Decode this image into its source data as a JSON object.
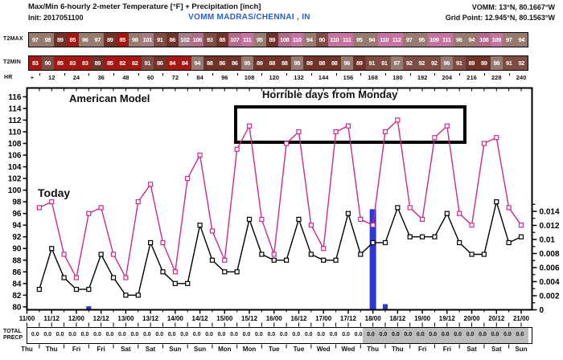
{
  "header": {
    "title": "Max/Min 6-hourly 2-meter Temperature [°F] + Precipitation [inch]",
    "init": "Init: 2017051100",
    "station": "VOMM MADRAS/CHENNAI , IN",
    "station_coords": "VOMM: 13°N, 80.1667°W",
    "grid_point": "Grid Point: 12.945°N, 80.1563°W"
  },
  "rows": {
    "t2max_label": "T2MAX",
    "t2min_label": "T2MIN",
    "hr_label": "HR",
    "hr_plus": "+",
    "hr_ticks": [
      "12",
      "24",
      "36",
      "48",
      "60",
      "72",
      "84",
      "96",
      "108",
      "120",
      "132",
      "144",
      "156",
      "168",
      "180",
      "192",
      "204",
      "216",
      "228",
      "240"
    ]
  },
  "palette": [
    {
      "max": 85,
      "color": "#A31812"
    },
    {
      "max": 89,
      "color": "#6F332A"
    },
    {
      "max": 93,
      "color": "#7F4C44"
    },
    {
      "max": 98,
      "color": "#977B71"
    },
    {
      "max": 103,
      "color": "#A47E86"
    },
    {
      "max": 108,
      "color": "#B36A8B"
    },
    {
      "max": 999,
      "color": "#C573A0"
    }
  ],
  "chart_data": {
    "type": "line",
    "title": "Max/Min 6-hourly 2-meter Temperature [°F] + Precipitation [inch]",
    "x_hours_start": 6,
    "x_hours_step": 6,
    "x_tick_labels": [
      "11/00",
      "11/12",
      "12/00",
      "12/12",
      "13/00",
      "13/12",
      "14/00",
      "14/12",
      "15/00",
      "15/12",
      "16/00",
      "16/12",
      "17/00",
      "17/12",
      "18/00",
      "18/12",
      "19/00",
      "19/12",
      "20/00",
      "20/12",
      "21/00"
    ],
    "temp_axis": {
      "min": 80,
      "max": 116,
      "tick_step": 2
    },
    "precip_axis_labels": [
      {
        "v": 0.014,
        "label": "0.014"
      },
      {
        "v": 0.012,
        "label": "0.012"
      },
      {
        "v": 0.01,
        "label": "0.01"
      },
      {
        "v": 0.008,
        "label": "0.008"
      },
      {
        "v": 0.006,
        "label": "0.006"
      },
      {
        "v": 0.004,
        "label": "0.004"
      },
      {
        "v": 0.002,
        "label": "0.002"
      },
      {
        "v": 0,
        "label": "0"
      }
    ],
    "series": [
      {
        "name": "T2MAX",
        "color": "#C92A8D",
        "values": [
          97,
          98,
          89,
          85,
          96,
          97,
          89,
          85,
          98,
          101,
          91,
          86,
          102,
          106,
          93,
          88,
          107,
          111,
          95,
          89,
          108,
          110,
          94,
          90,
          110,
          111,
          95,
          94,
          110,
          112,
          97,
          95,
          109,
          111,
          96,
          94,
          108,
          109,
          97,
          94
        ]
      },
      {
        "name": "T2MIN",
        "color": "#000000",
        "values": [
          83,
          90,
          85,
          83,
          83,
          89,
          85,
          82,
          82,
          91,
          86,
          84,
          84,
          94,
          88,
          86,
          86,
          95,
          89,
          88,
          88,
          95,
          89,
          88,
          88,
          96,
          89,
          91,
          91,
          97,
          92,
          92,
          92,
          96,
          91,
          89,
          89,
          98,
          91,
          92
        ]
      }
    ],
    "precip_bars": [
      {
        "hour": 30,
        "value": 0.0005
      },
      {
        "hour": 168,
        "value": 0.0143
      },
      {
        "hour": 174,
        "value": 0.0008
      }
    ],
    "bar_color": "#2B38D4",
    "annotations": {
      "american_model": "American Model",
      "horrible": "Horrible days from Monday",
      "today": "Today"
    },
    "grid": false,
    "legend": "none"
  },
  "footer": {
    "total_precip_label_1": "TOTAL",
    "total_precip_label_2": "PRECP",
    "precip_values": [
      "0.0",
      "0.0",
      "0.0",
      "0.0",
      "0.0",
      "0.0",
      "0.0",
      "0.0",
      "0.0",
      "0.0",
      "0.0",
      "0.0",
      "0.0",
      "0.0",
      "0.0",
      "0.0",
      "0.0",
      "0.0",
      "0.0",
      "0.0",
      "0.0",
      "0.0",
      "0.0",
      "0.0",
      "0.0",
      "0.0",
      "0.0",
      "0.0",
      "0.0",
      "0.0",
      "0.0",
      "0.0",
      "0.0",
      "0.0",
      "0.0",
      "0.0",
      "0.0",
      "0.0",
      "0.0",
      "0.0"
    ],
    "gray_from_index": 27,
    "days": [
      "Thu",
      "Thu",
      "Fri",
      "Fri",
      "Sat",
      "Sat",
      "Sun",
      "Sun",
      "Mon",
      "Mon",
      "Tue",
      "Tue",
      "Wed",
      "Wed",
      "Thu",
      "Thu",
      "Fri",
      "Fri",
      "Sat",
      "Sat",
      "Sun"
    ]
  }
}
